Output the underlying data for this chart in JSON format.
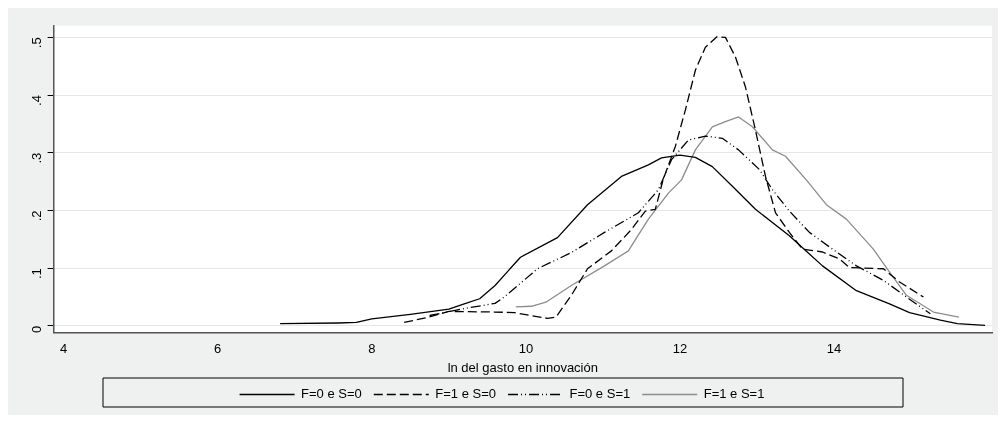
{
  "chart_data": {
    "type": "line",
    "xlabel": "ln del gasto en innovación",
    "xlim": [
      3.87,
      16.05
    ],
    "xticks": [
      4,
      6,
      8,
      10,
      12,
      14
    ],
    "ylim": [
      -0.012,
      0.52
    ],
    "yticks": [
      {
        "value": 0,
        "label": "0"
      },
      {
        "value": 0.1,
        "label": ".1"
      },
      {
        "value": 0.2,
        "label": ".2"
      },
      {
        "value": 0.3,
        "label": ".3"
      },
      {
        "value": 0.4,
        "label": ".4"
      },
      {
        "value": 0.5,
        "label": ".5"
      }
    ],
    "grid": "y",
    "legend": "bottom",
    "marker": "none",
    "series": [
      {
        "name": "F=0 e S=0",
        "color": "#000000",
        "line_style": "solid",
        "x": [
          6.81,
          7.56,
          7.8,
          8.0,
          8.5,
          9.0,
          9.2,
          9.4,
          9.6,
          9.93,
          10.41,
          10.8,
          11.24,
          11.59,
          11.76,
          12.0,
          12.2,
          12.42,
          12.68,
          12.98,
          13.42,
          13.85,
          14.29,
          14.72,
          14.98,
          15.38,
          15.6,
          15.96
        ],
        "values": [
          0.004,
          0.005,
          0.006,
          0.012,
          0.02,
          0.029,
          0.038,
          0.047,
          0.07,
          0.119,
          0.153,
          0.21,
          0.259,
          0.279,
          0.291,
          0.296,
          0.292,
          0.276,
          0.242,
          0.202,
          0.156,
          0.104,
          0.061,
          0.038,
          0.023,
          0.01,
          0.004,
          0.001
        ]
      },
      {
        "name": "F=1 e S=0",
        "color": "#000000",
        "line_style": "dashed",
        "x": [
          8.42,
          8.7,
          9.0,
          9.59,
          9.85,
          10.28,
          10.39,
          10.59,
          10.8,
          11.11,
          11.37,
          11.55,
          11.68,
          11.78,
          11.94,
          12.07,
          12.2,
          12.33,
          12.48,
          12.59,
          12.72,
          12.85,
          12.98,
          13.11,
          13.24,
          13.42,
          13.59,
          13.85,
          14.07,
          14.2,
          14.64,
          14.85,
          15.16
        ],
        "values": [
          0.006,
          0.014,
          0.025,
          0.024,
          0.023,
          0.013,
          0.015,
          0.053,
          0.099,
          0.13,
          0.167,
          0.199,
          0.202,
          0.253,
          0.311,
          0.374,
          0.443,
          0.483,
          0.501,
          0.5,
          0.466,
          0.414,
          0.339,
          0.259,
          0.196,
          0.162,
          0.133,
          0.128,
          0.116,
          0.101,
          0.099,
          0.076,
          0.05
        ]
      },
      {
        "name": "F=0 e S=1",
        "color": "#000000",
        "line_style": "dotted",
        "x": [
          8.75,
          9.2,
          9.6,
          9.72,
          10.15,
          10.59,
          11.02,
          11.46,
          11.72,
          11.89,
          12.11,
          12.33,
          12.55,
          12.76,
          13.03,
          13.2,
          13.42,
          13.68,
          13.98,
          14.29,
          14.64,
          14.94,
          15.25
        ],
        "values": [
          0.018,
          0.03,
          0.039,
          0.05,
          0.099,
          0.127,
          0.162,
          0.196,
          0.236,
          0.288,
          0.322,
          0.329,
          0.325,
          0.305,
          0.271,
          0.236,
          0.199,
          0.162,
          0.133,
          0.104,
          0.079,
          0.05,
          0.021
        ]
      },
      {
        "name": "F=1 e S=1",
        "color": "#8c8c8c",
        "line_style": "solid",
        "x": [
          9.87,
          10.07,
          10.26,
          10.59,
          11.02,
          11.33,
          11.59,
          11.85,
          12.02,
          12.2,
          12.42,
          12.59,
          12.76,
          12.94,
          13.2,
          13.37,
          13.64,
          13.9,
          14.16,
          14.51,
          14.72,
          14.94,
          15.29,
          15.62
        ],
        "values": [
          0.033,
          0.034,
          0.041,
          0.07,
          0.104,
          0.13,
          0.185,
          0.23,
          0.253,
          0.305,
          0.345,
          0.354,
          0.362,
          0.345,
          0.305,
          0.294,
          0.253,
          0.21,
          0.185,
          0.133,
          0.093,
          0.053,
          0.024,
          0.015
        ]
      }
    ]
  }
}
